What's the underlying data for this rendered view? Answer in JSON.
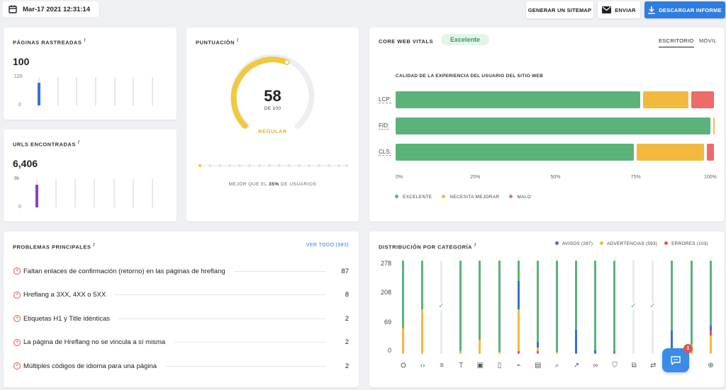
{
  "header": {
    "datetime": "Mar-17 2021 12:31:14",
    "btn_sitemap": "GENERAR UN SITEMAP",
    "btn_send": "ENVIAR",
    "btn_download": "DESCARGAR INFORME"
  },
  "crawled": {
    "title": "PÁGINAS RASTREADAS",
    "info": "i",
    "value": "100",
    "y_top": "120",
    "y_bottom": "0",
    "bar_fraction": 0.8
  },
  "urls": {
    "title": "URLS ENCONTRADAS",
    "info": "i",
    "value": "6,406",
    "y_top": "8k",
    "y_bottom": "0",
    "bar_fraction": 0.8
  },
  "score": {
    "title": "PUNTUACIÓN",
    "info": "i",
    "value": "58",
    "of": "DE 100",
    "rating": "REGULAR",
    "better_prefix": "MEJOR QUE EL ",
    "better_pct": "35%",
    "better_suffix": " DE USUARIOS",
    "percent": 58
  },
  "cwv": {
    "title": "CORE WEB VITALS",
    "badge": "Excelente",
    "tab_desktop": "ESCRITORIO",
    "tab_mobile": "MÓVIL",
    "subtitle": "CALIDAD DE LA EXPERIENCIA DEL USUARIO DEL SITIO WEB",
    "rows": [
      {
        "label": "LCP:",
        "good": 77,
        "mid": 15,
        "bad": 8
      },
      {
        "label": "FID:",
        "good": 99,
        "mid": 1,
        "bad": 0
      },
      {
        "label": "CLS:",
        "good": 75,
        "mid": 22,
        "bad": 3
      }
    ],
    "ticks": [
      "0%",
      "25%",
      "50%",
      "75%",
      "100%"
    ],
    "legend": {
      "good": "EXCELENTE",
      "mid": "NECESITA MEJORAR",
      "bad": "MALO"
    },
    "colors": {
      "good": "#5bb37a",
      "mid": "#f3b93f",
      "bad": "#ee6b6b"
    }
  },
  "problems": {
    "title": "PROBLEMAS PRINCIPALES",
    "info": "i",
    "view_all": "VER TODO (983)",
    "items": [
      {
        "text": "Faltan enlaces de confirmación (retorno) en las páginas de hreflang",
        "count": "87"
      },
      {
        "text": "Hreflang a 3XX, 4XX o 5XX",
        "count": "8"
      },
      {
        "text": "Etiquetas H1 y Title idénticas",
        "count": "2"
      },
      {
        "text": "La página de Hreflang no se vincula a sí misma",
        "count": "2"
      },
      {
        "text": "Múltiples códigos de idioma para una página",
        "count": "2"
      }
    ]
  },
  "distribution": {
    "title": "DISTRIBUCIÓN POR CATEGORÍA",
    "info": "i",
    "legend_notice": "AVISOS (287)",
    "legend_warning": "ADVERTENCIAS (593)",
    "legend_error": "ERRORES (103)",
    "y_ticks": [
      "278",
      "208",
      "69",
      "0"
    ],
    "chat_badge": "1",
    "colors": {
      "ok": "#5bb37a",
      "notice": "#3a6fd8",
      "warning": "#f3b93f",
      "error": "#e0574e"
    },
    "columns": [
      {
        "icon": "⛭",
        "segs": [
          [
            "ok",
            0.73
          ],
          [
            "warning",
            0.27
          ]
        ]
      },
      {
        "icon": "‹›",
        "segs": [
          [
            "ok",
            0.52
          ],
          [
            "warning",
            0.48
          ]
        ]
      },
      {
        "icon": "≡",
        "check": true,
        "segs": []
      },
      {
        "icon": "T",
        "segs": [
          [
            "ok",
            0.97
          ],
          [
            "warning",
            0.03
          ]
        ]
      },
      {
        "icon": "▣",
        "segs": [
          [
            "ok",
            0.85
          ],
          [
            "warning",
            0.15
          ]
        ]
      },
      {
        "icon": "▯",
        "segs": [
          [
            "ok",
            0.98
          ],
          [
            "warning",
            0.02
          ]
        ]
      },
      {
        "icon": "⌁",
        "segs": [
          [
            "ok",
            0.22
          ],
          [
            "notice",
            0.3
          ],
          [
            "warning",
            0.45
          ],
          [
            "error",
            0.03
          ]
        ]
      },
      {
        "icon": "▤",
        "segs": [
          [
            "ok",
            0.87
          ],
          [
            "notice",
            0.06
          ],
          [
            "warning",
            0.04
          ],
          [
            "error",
            0.03
          ]
        ]
      },
      {
        "icon": "⌕",
        "segs": [
          [
            "ok",
            0.98
          ],
          [
            "warning",
            0.02
          ]
        ]
      },
      {
        "icon": "↗",
        "segs": [
          [
            "ok",
            0.74
          ],
          [
            "notice",
            0.26
          ]
        ]
      },
      {
        "icon": "∞",
        "segs": [
          [
            "ok",
            0.96
          ],
          [
            "notice",
            0.04
          ]
        ]
      },
      {
        "icon": "⛉",
        "segs": [
          [
            "ok",
            0.97
          ],
          [
            "error",
            0.03
          ]
        ]
      },
      {
        "icon": "⧉",
        "check": true,
        "segs": []
      },
      {
        "icon": "⇄",
        "check": true,
        "segs": []
      },
      {
        "icon": "",
        "segs": [
          [
            "ok",
            0.75
          ],
          [
            "notice",
            0.2
          ],
          [
            "warning",
            0.05
          ]
        ]
      },
      {
        "icon": "",
        "segs": [
          [
            "ok",
            0.9
          ],
          [
            "warning",
            0.1
          ]
        ]
      },
      {
        "icon": "⊕",
        "segs": [
          [
            "ok",
            0.7
          ],
          [
            "notice",
            0.05
          ],
          [
            "error",
            0.05
          ],
          [
            "warning",
            0.2
          ]
        ]
      }
    ]
  }
}
